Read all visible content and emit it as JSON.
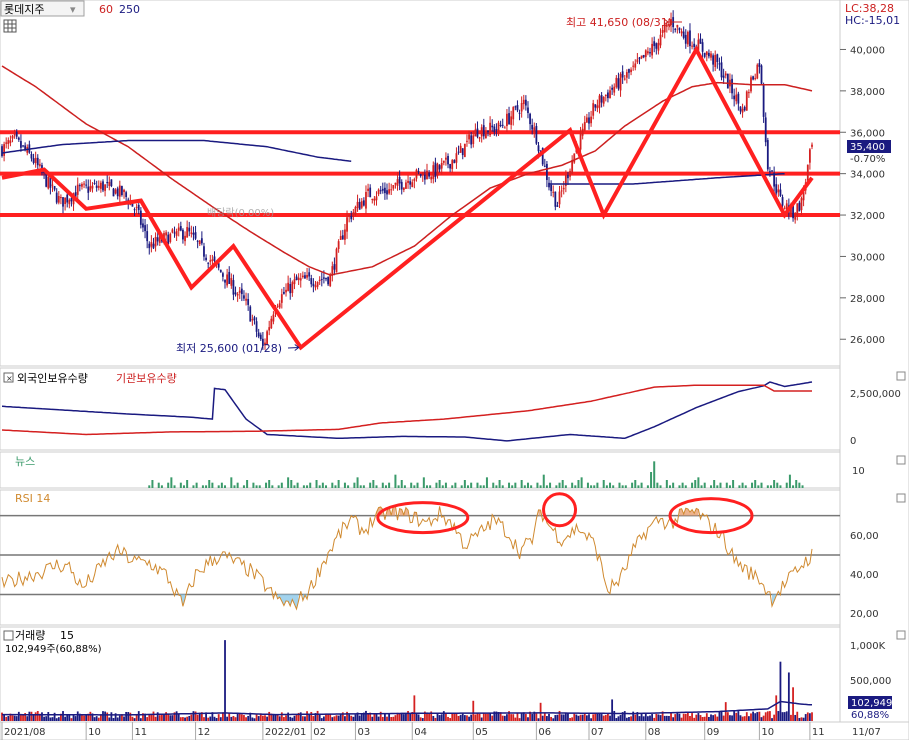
{
  "header": {
    "stock_name": "롯데지주",
    "ma_short": "60",
    "ma_long": "250",
    "lc": "LC:38,28",
    "hc": "HC:-15,01"
  },
  "colors": {
    "up": "#d42020",
    "down": "#1a1a80",
    "trend": "#ff2020",
    "ma60": "#cc2020",
    "ma250": "#1a1a80",
    "rsi": "#d08a30",
    "news": "#3a9a6a",
    "grid": "#888888"
  },
  "price_panel": {
    "annotations": {
      "high": "최고 41,650 (08/31)",
      "low": "최저 25,600 (01/28)",
      "faded": "배당락(0.00%)"
    },
    "current_price": "35,400",
    "change": "-0.70%",
    "hlines": [
      36000,
      34000,
      32000
    ]
  },
  "foreign_panel": {
    "foreign_label": "외국인보유수량",
    "inst_label": "기관보유수량",
    "y_ticks": [
      "2,500,000",
      "0"
    ]
  },
  "news_panel": {
    "label": "뉴스",
    "y_ticks": [
      "10"
    ]
  },
  "rsi_panel": {
    "label": "RSI 14",
    "y_ticks": [
      "60,00",
      "40,00",
      "20,00"
    ]
  },
  "volume_panel": {
    "label": "거래량",
    "period": "15",
    "sub": "102,949주(60,88%)",
    "y_ticks": [
      "1,000K",
      "500,000"
    ],
    "badge_value": "102,949",
    "badge_pct": "60,88%"
  },
  "x_axis_labels": [
    "2021/08",
    "10",
    "11",
    "12",
    "2022/01",
    "02",
    "03",
    "04",
    "05",
    "06",
    "07",
    "08",
    "09",
    "10",
    "11",
    "11/07"
  ],
  "chart_data": [
    {
      "type": "candlestick",
      "y_ticks": [
        40000,
        38000,
        36000,
        34000,
        32000,
        30000,
        28000,
        26000
      ],
      "ylim": [
        24900,
        42100
      ],
      "price_keypoints": [
        [
          0,
          35200
        ],
        [
          6,
          35600
        ],
        [
          14,
          34800
        ],
        [
          22,
          33500
        ],
        [
          28,
          32600
        ],
        [
          36,
          33200
        ],
        [
          48,
          33400
        ],
        [
          58,
          33000
        ],
        [
          64,
          32200
        ],
        [
          70,
          30500
        ],
        [
          78,
          30900
        ],
        [
          88,
          31200
        ],
        [
          96,
          30200
        ],
        [
          106,
          29000
        ],
        [
          116,
          27700
        ],
        [
          124,
          25600
        ],
        [
          130,
          27800
        ],
        [
          140,
          28800
        ],
        [
          150,
          28900
        ],
        [
          156,
          29000
        ],
        [
          164,
          31800
        ],
        [
          174,
          33000
        ],
        [
          184,
          33200
        ],
        [
          196,
          33900
        ],
        [
          206,
          34100
        ],
        [
          216,
          34800
        ],
        [
          226,
          36100
        ],
        [
          236,
          36200
        ],
        [
          248,
          37400
        ],
        [
          254,
          35800
        ],
        [
          260,
          33500
        ],
        [
          264,
          32500
        ],
        [
          272,
          35000
        ],
        [
          282,
          37300
        ],
        [
          292,
          38300
        ],
        [
          300,
          39000
        ],
        [
          306,
          39700
        ],
        [
          312,
          40400
        ],
        [
          318,
          41400
        ],
        [
          324,
          40700
        ],
        [
          332,
          40100
        ],
        [
          340,
          39300
        ],
        [
          346,
          38200
        ],
        [
          352,
          37000
        ],
        [
          356,
          38500
        ],
        [
          360,
          39400
        ],
        [
          364,
          34500
        ],
        [
          370,
          32700
        ],
        [
          376,
          32100
        ],
        [
          380,
          32600
        ],
        [
          385,
          35400
        ]
      ],
      "ma60_keypoints": [
        [
          0,
          39200
        ],
        [
          16,
          38200
        ],
        [
          40,
          36400
        ],
        [
          60,
          35300
        ],
        [
          80,
          33800
        ],
        [
          100,
          32400
        ],
        [
          118,
          31200
        ],
        [
          134,
          30200
        ],
        [
          146,
          29500
        ],
        [
          156,
          29100
        ],
        [
          176,
          29500
        ],
        [
          196,
          30500
        ],
        [
          214,
          32000
        ],
        [
          232,
          33300
        ],
        [
          250,
          34000
        ],
        [
          266,
          34400
        ],
        [
          282,
          35100
        ],
        [
          296,
          36300
        ],
        [
          314,
          37500
        ],
        [
          328,
          38200
        ],
        [
          340,
          38400
        ],
        [
          356,
          38300
        ],
        [
          372,
          38300
        ],
        [
          385,
          38000
        ]
      ],
      "ma250_keypoints": [
        [
          0,
          35000
        ],
        [
          28,
          35400
        ],
        [
          60,
          35600
        ],
        [
          96,
          35600
        ],
        [
          126,
          35300
        ],
        [
          150,
          34800
        ],
        [
          166,
          34600
        ]
      ],
      "ma250_tail_keypoints": [
        [
          260,
          33500
        ],
        [
          300,
          33500
        ],
        [
          340,
          33800
        ],
        [
          372,
          34000
        ]
      ],
      "trendlines": [
        [
          [
            0,
            33800
          ],
          [
            20,
            34200
          ],
          [
            40,
            32300
          ],
          [
            66,
            32700
          ],
          [
            90,
            28500
          ],
          [
            110,
            30500
          ],
          [
            142,
            25600
          ],
          [
            270,
            36100
          ],
          [
            286,
            32000
          ],
          [
            330,
            40000
          ],
          [
            372,
            32000
          ],
          [
            385,
            33800
          ]
        ]
      ],
      "high_mark": {
        "index": 318,
        "value": 41650
      },
      "low_mark": {
        "index": 142,
        "value": 25600
      },
      "last_close": 35400
    },
    {
      "type": "line",
      "series": [
        {
          "name": "외국인보유수량",
          "keypoints": [
            [
              0,
              0.62
            ],
            [
              30,
              0.56
            ],
            [
              60,
              0.5
            ],
            [
              90,
              0.45
            ],
            [
              100,
              0.42
            ],
            [
              101,
              0.9
            ],
            [
              106,
              0.88
            ],
            [
              116,
              0.42
            ],
            [
              126,
              0.18
            ],
            [
              160,
              0.12
            ],
            [
              190,
              0.15
            ],
            [
              220,
              0.14
            ],
            [
              240,
              0.08
            ],
            [
              270,
              0.18
            ],
            [
              296,
              0.12
            ],
            [
              310,
              0.3
            ],
            [
              330,
              0.6
            ],
            [
              350,
              0.85
            ],
            [
              362,
              0.94
            ],
            [
              365,
              1.0
            ],
            [
              372,
              0.93
            ],
            [
              385,
              1.0
            ]
          ]
        },
        {
          "name": "기관보유수량",
          "keypoints": [
            [
              0,
              0.25
            ],
            [
              40,
              0.18
            ],
            [
              80,
              0.22
            ],
            [
              120,
              0.23
            ],
            [
              160,
              0.26
            ],
            [
              180,
              0.36
            ],
            [
              210,
              0.42
            ],
            [
              250,
              0.55
            ],
            [
              280,
              0.7
            ],
            [
              310,
              0.92
            ],
            [
              330,
              0.95
            ],
            [
              362,
              0.95
            ],
            [
              367,
              0.86
            ],
            [
              385,
              0.86
            ]
          ]
        }
      ]
    },
    {
      "type": "bar",
      "name": "뉴스",
      "start_index": 70,
      "ylim": [
        0,
        12
      ],
      "counts": [
        1,
        3,
        0,
        2,
        1,
        0,
        2,
        4,
        1,
        0,
        2,
        1,
        3,
        0,
        1,
        2,
        0,
        1,
        1,
        3,
        2,
        0,
        1,
        2,
        1,
        0,
        4,
        1,
        2,
        0,
        1,
        3,
        0,
        2,
        1,
        1,
        0,
        2,
        3,
        1,
        0,
        1,
        2,
        0,
        4,
        3,
        1,
        2,
        0,
        1,
        1,
        2,
        0,
        3,
        1,
        2,
        1,
        0,
        2,
        1,
        3,
        0,
        2,
        1,
        0,
        2,
        4,
        1,
        1,
        0,
        2,
        3,
        1,
        0,
        2,
        1,
        2,
        0,
        5,
        1,
        3,
        1,
        0,
        2,
        1,
        2,
        0,
        4,
        1,
        1,
        0,
        2,
        3,
        1,
        2,
        0,
        1,
        2,
        0,
        1,
        3,
        1,
        2,
        0,
        2,
        1,
        1,
        4,
        0,
        2,
        1,
        3,
        1,
        0,
        2,
        1,
        2,
        0,
        3,
        1,
        2,
        1,
        0,
        2,
        1,
        5,
        1,
        2,
        0,
        1,
        2,
        3,
        1,
        0,
        2,
        1,
        3,
        4,
        0,
        2,
        1,
        1,
        2,
        0,
        3,
        1,
        2,
        1,
        0,
        2,
        1,
        1,
        0,
        2,
        3,
        1,
        2,
        0,
        1,
        6,
        10,
        2,
        1,
        0,
        3,
        1,
        2,
        0,
        1,
        2,
        1,
        0,
        2,
        3,
        4,
        1,
        2,
        0,
        1,
        3,
        1,
        2,
        0,
        2,
        1,
        3,
        0,
        1,
        2,
        1,
        0,
        2,
        3,
        1,
        2,
        0,
        1,
        1,
        3,
        2,
        1,
        0,
        2,
        5,
        1,
        3,
        2,
        1,
        0
      ]
    },
    {
      "type": "line",
      "name": "RSI 14",
      "ylim": [
        15,
        82
      ],
      "hlines": [
        70,
        50,
        30
      ],
      "keypoints": [
        [
          0,
          35
        ],
        [
          8,
          38
        ],
        [
          14,
          40
        ],
        [
          20,
          42
        ],
        [
          26,
          45
        ],
        [
          32,
          44
        ],
        [
          38,
          33
        ],
        [
          44,
          40
        ],
        [
          50,
          48
        ],
        [
          56,
          52
        ],
        [
          62,
          47
        ],
        [
          70,
          46
        ],
        [
          78,
          40
        ],
        [
          86,
          24
        ],
        [
          92,
          40
        ],
        [
          98,
          46
        ],
        [
          104,
          50
        ],
        [
          110,
          47
        ],
        [
          118,
          42
        ],
        [
          124,
          36
        ],
        [
          130,
          28
        ],
        [
          138,
          24
        ],
        [
          146,
          32
        ],
        [
          152,
          45
        ],
        [
          160,
          60
        ],
        [
          166,
          68
        ],
        [
          172,
          62
        ],
        [
          178,
          70
        ],
        [
          186,
          72
        ],
        [
          194,
          70
        ],
        [
          202,
          66
        ],
        [
          208,
          71
        ],
        [
          214,
          66
        ],
        [
          220,
          55
        ],
        [
          226,
          60
        ],
        [
          234,
          68
        ],
        [
          240,
          62
        ],
        [
          246,
          52
        ],
        [
          252,
          58
        ],
        [
          256,
          73
        ],
        [
          260,
          65
        ],
        [
          266,
          58
        ],
        [
          274,
          64
        ],
        [
          282,
          55
        ],
        [
          288,
          32
        ],
        [
          294,
          38
        ],
        [
          300,
          52
        ],
        [
          306,
          62
        ],
        [
          312,
          68
        ],
        [
          318,
          66
        ],
        [
          324,
          71
        ],
        [
          330,
          72
        ],
        [
          336,
          66
        ],
        [
          342,
          60
        ],
        [
          348,
          48
        ],
        [
          354,
          42
        ],
        [
          360,
          38
        ],
        [
          366,
          28
        ],
        [
          372,
          35
        ],
        [
          380,
          45
        ],
        [
          385,
          50
        ]
      ],
      "ellipses": [
        [
          200,
          69,
          45,
          15
        ],
        [
          265,
          73,
          16,
          16
        ],
        [
          337,
          70,
          41,
          17
        ]
      ]
    },
    {
      "type": "bar",
      "name": "거래량",
      "ylim": [
        0,
        1350
      ],
      "spikes": [
        [
          106,
          1200
        ],
        [
          196,
          380
        ],
        [
          224,
          300
        ],
        [
          256,
          270
        ],
        [
          290,
          320
        ],
        [
          344,
          280
        ],
        [
          368,
          380
        ],
        [
          370,
          880
        ],
        [
          374,
          720
        ],
        [
          376,
          500
        ]
      ],
      "avg_keypoints": [
        [
          0,
          95
        ],
        [
          60,
          90
        ],
        [
          106,
          120
        ],
        [
          130,
          95
        ],
        [
          200,
          115
        ],
        [
          260,
          120
        ],
        [
          300,
          110
        ],
        [
          340,
          140
        ],
        [
          364,
          180
        ],
        [
          370,
          290
        ],
        [
          380,
          250
        ],
        [
          385,
          240
        ]
      ]
    }
  ]
}
